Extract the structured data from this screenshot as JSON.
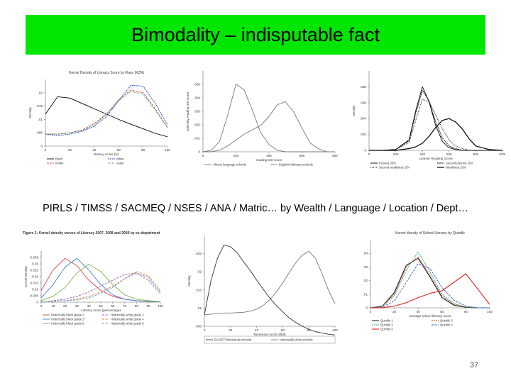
{
  "slide": {
    "title": "Bimodality – indisputable fact",
    "caption": "PIRLS / TIMSS / SACMEQ / NSES / ANA / Matric… by Wealth / Language / Location / Dept…",
    "page_number": "37",
    "title_bg": "#00e600"
  },
  "chart_data": [
    {
      "type": "line",
      "title": "Kernel Density of Literacy Score by Race (KZN)",
      "xlabel": "literacy score (%)",
      "ylabel": "Density",
      "xlim": [
        0,
        100
      ],
      "x_ticks": [
        "0",
        "20",
        "40",
        "60",
        "80",
        "100"
      ],
      "y_ticks": [
        "0",
        ".005",
        ".01",
        ".015",
        ".02"
      ],
      "x": [
        0,
        10,
        20,
        30,
        40,
        50,
        60,
        70,
        80,
        90,
        100
      ],
      "series": [
        {
          "name": "Black",
          "color": "#000000",
          "dash": "",
          "values": [
            0.012,
            0.0185,
            0.018,
            0.016,
            0.014,
            0.012,
            0.01,
            0.0082,
            0.0065,
            0.0048,
            0.0035
          ]
        },
        {
          "name": "White",
          "color": "#1f3fbf",
          "dash": "2,1",
          "values": [
            0.0045,
            0.004,
            0.0045,
            0.0055,
            0.0075,
            0.011,
            0.017,
            0.0228,
            0.0225,
            0.016,
            0.008
          ]
        },
        {
          "name": "Indian",
          "color": "#c44545",
          "dash": "3,1.5",
          "values": [
            0.0045,
            0.0045,
            0.005,
            0.006,
            0.0085,
            0.012,
            0.0175,
            0.021,
            0.02,
            0.014,
            0.007
          ]
        },
        {
          "name": "Asian",
          "color": "#2e8b57",
          "dash": "1,1",
          "values": [
            0.0045,
            0.0045,
            0.005,
            0.0058,
            0.008,
            0.0118,
            0.017,
            0.0205,
            0.0195,
            0.0135,
            0.0068
          ]
        }
      ]
    },
    {
      "type": "line",
      "xlabel": "reading test score",
      "ylabel": "kdensity reading test score",
      "xlim": [
        0,
        800
      ],
      "x_ticks": [
        "0",
        "200",
        "400",
        "600",
        "800"
      ],
      "y_ticks": [
        "0",
        ".001",
        ".002",
        ".003",
        ".004",
        ".005"
      ],
      "x": [
        0,
        50,
        100,
        150,
        200,
        250,
        300,
        350,
        400,
        450,
        500,
        550,
        600,
        650,
        700,
        750,
        800
      ],
      "series": [
        {
          "name": "African language schools",
          "color": "#777777",
          "dash": "",
          "values": [
            0.0,
            0.0001,
            0.0007,
            0.0025,
            0.0046,
            0.0042,
            0.0028,
            0.0013,
            0.0005,
            0.0001,
            0.0,
            0.0,
            0.0,
            0.0,
            0.0,
            0.0,
            0.0
          ]
        },
        {
          "name": "English/Afrikaans schools",
          "color": "#777777",
          "dash": "",
          "values": [
            0.0,
            0.0,
            0.0001,
            0.0004,
            0.0008,
            0.0012,
            0.0015,
            0.0018,
            0.0024,
            0.0032,
            0.0034,
            0.0027,
            0.0016,
            0.0006,
            0.0002,
            0.0,
            0.0
          ]
        }
      ]
    },
    {
      "type": "line",
      "xlabel": "Learner Reading Score",
      "ylabel": "Density",
      "xlim": [
        0,
        1000
      ],
      "x_ticks": [
        "0",
        "200",
        "400",
        "600",
        "800",
        "1000"
      ],
      "y_ticks": [
        "0",
        ".002",
        ".004",
        ".006",
        ".008"
      ],
      "x": [
        0,
        100,
        200,
        300,
        350,
        400,
        450,
        500,
        550,
        600,
        650,
        700,
        750,
        800,
        900,
        1000
      ],
      "series": [
        {
          "name": "Poorest 25%",
          "color": "#000000",
          "dash": "",
          "values": [
            0.0,
            0.0,
            0.0001,
            0.0012,
            0.0045,
            0.0072,
            0.0055,
            0.0028,
            0.001,
            0.0003,
            0.0001,
            0.0,
            0.0,
            0.0,
            0.0,
            0.0
          ]
        },
        {
          "name": "Second poorest 25%",
          "color": "#000000",
          "dash": "2,1",
          "values": [
            0.0,
            0.0,
            0.0001,
            0.0011,
            0.0042,
            0.0068,
            0.0056,
            0.0032,
            0.0014,
            0.0005,
            0.0002,
            0.0,
            0.0,
            0.0,
            0.0,
            0.0
          ]
        },
        {
          "name": "Second wealthiest 25%",
          "color": "#000000",
          "dash": "1,1",
          "values": [
            0.0,
            0.0,
            0.0001,
            0.0009,
            0.0034,
            0.0058,
            0.0055,
            0.004,
            0.0024,
            0.0012,
            0.0005,
            0.0002,
            0.0,
            0.0,
            0.0,
            0.0
          ]
        },
        {
          "name": "Wealthiest 25%",
          "color": "#000000",
          "dash": "",
          "width": 1.2,
          "values": [
            0.0,
            0.0,
            0.0,
            0.0002,
            0.0004,
            0.0008,
            0.0016,
            0.0026,
            0.0034,
            0.0036,
            0.0032,
            0.0024,
            0.0013,
            0.0005,
            0.0001,
            0.0
          ]
        }
      ]
    },
    {
      "type": "line",
      "title": "Figure 2: Kernel density curves of Literacy 2007, 2008 and 2009 by ex-department",
      "xlabel": "Literacy score (percentage)",
      "ylabel": "Kernel Density",
      "xlim": [
        0,
        100
      ],
      "x_ticks": [
        "0",
        "10",
        "20",
        "30",
        "40",
        "50",
        "60",
        "70",
        "80",
        "90",
        "100"
      ],
      "y_ticks": [
        "0",
        "0.005",
        "0.01",
        "0.015",
        "0.02",
        "0.025",
        "0.03",
        "0.035"
      ],
      "x": [
        0,
        10,
        20,
        30,
        40,
        50,
        60,
        70,
        80,
        90,
        100
      ],
      "series": [
        {
          "name": "Historically black grade 2",
          "color": "#e04040",
          "dash": "",
          "values": [
            0.008,
            0.022,
            0.03,
            0.025,
            0.015,
            0.008,
            0.004,
            0.002,
            0.001,
            0.0005,
            0.0002
          ]
        },
        {
          "name": "Historically white grade 3",
          "color": "#9b59b6",
          "dash": "3,1.5",
          "values": [
            0.0,
            0.001,
            0.002,
            0.004,
            0.007,
            0.011,
            0.015,
            0.019,
            0.02,
            0.015,
            0.006
          ]
        },
        {
          "name": "Historically black grade 3",
          "color": "#3a7bd5",
          "dash": "",
          "values": [
            0.003,
            0.012,
            0.024,
            0.03,
            0.022,
            0.012,
            0.005,
            0.002,
            0.001,
            0.0005,
            0.0002
          ]
        },
        {
          "name": "Historically white grade 4",
          "color": "#e67e22",
          "dash": "3,1.5",
          "values": [
            0.0,
            0.0005,
            0.001,
            0.002,
            0.004,
            0.007,
            0.011,
            0.016,
            0.021,
            0.018,
            0.008
          ]
        },
        {
          "name": "Historically black grade 5",
          "color": "#7cb342",
          "dash": "",
          "values": [
            0.001,
            0.004,
            0.01,
            0.02,
            0.026,
            0.021,
            0.012,
            0.005,
            0.002,
            0.001,
            0.0003
          ]
        },
        {
          "name": "Historically white grade 5",
          "color": "#5b9bd5",
          "dash": "3,1.5",
          "values": [
            0.0,
            0.0005,
            0.001,
            0.0015,
            0.003,
            0.006,
            0.01,
            0.016,
            0.02,
            0.017,
            0.007
          ]
        }
      ]
    },
    {
      "type": "line",
      "xlabel": "Numeracy score 2008",
      "ylabel": "Density",
      "xlim": [
        0,
        100
      ],
      "x_ticks": [
        "0",
        "20",
        "40",
        "60",
        "80",
        "100"
      ],
      "y_ticks": [
        ".005",
        ".01",
        ".015",
        ".02",
        ".025"
      ],
      "x": [
        0,
        5,
        10,
        15,
        20,
        25,
        30,
        35,
        40,
        45,
        50,
        55,
        60,
        65,
        70,
        75,
        80,
        85,
        90,
        95,
        100
      ],
      "series": [
        {
          "name": "Ex-DET/Homelands schools",
          "color": "#333333",
          "dash": "",
          "values": [
            0.006,
            0.015,
            0.021,
            0.0245,
            0.024,
            0.0225,
            0.02,
            0.0178,
            0.0152,
            0.0128,
            0.0105,
            0.0085,
            0.0068,
            0.0052,
            0.004,
            0.003,
            0.0022,
            0.0016,
            0.0012,
            0.0009,
            0.0007
          ]
        },
        {
          "name": "Historically white schools",
          "color": "#777777",
          "dash": "",
          "values": [
            0.006,
            0.0062,
            0.0064,
            0.0065,
            0.0065,
            0.0066,
            0.0067,
            0.007,
            0.0075,
            0.0085,
            0.01,
            0.012,
            0.0145,
            0.0172,
            0.0198,
            0.0218,
            0.0228,
            0.021,
            0.017,
            0.0125,
            0.009
          ]
        }
      ]
    },
    {
      "type": "line",
      "title": "Kernel density of School Literacy by Quintile",
      "xlabel": "Average school literacy score",
      "ylabel": "Density",
      "xlim": [
        0,
        100
      ],
      "x_ticks": [
        "0",
        "20",
        "40",
        "60",
        "80",
        "100"
      ],
      "y_ticks": [
        "0",
        ".01",
        ".02",
        ".03",
        ".04"
      ],
      "x": [
        0,
        10,
        20,
        30,
        40,
        50,
        60,
        70,
        80,
        90,
        100
      ],
      "series": [
        {
          "name": "Quintile 1",
          "color": "#000000",
          "dash": "",
          "values": [
            0.0,
            0.001,
            0.009,
            0.025,
            0.029,
            0.018,
            0.006,
            0.0015,
            0.0003,
            0.0,
            0.0
          ]
        },
        {
          "name": "Quintile 2",
          "color": "#c0392b",
          "dash": "2,1",
          "values": [
            0.0,
            0.001,
            0.008,
            0.024,
            0.03,
            0.019,
            0.007,
            0.002,
            0.0004,
            0.0,
            0.0
          ]
        },
        {
          "name": "Quintile 3",
          "color": "#27ae60",
          "dash": "2,1",
          "values": [
            0.0,
            0.0008,
            0.007,
            0.022,
            0.033,
            0.021,
            0.008,
            0.0025,
            0.0005,
            0.0,
            0.0
          ]
        },
        {
          "name": "Quintile 4",
          "color": "#2e4fd1",
          "dash": "3,1.5",
          "values": [
            0.0,
            0.0005,
            0.004,
            0.015,
            0.026,
            0.023,
            0.012,
            0.0045,
            0.001,
            0.0,
            0.0
          ]
        },
        {
          "name": "Quintile 5",
          "color": "#e02020",
          "dash": "",
          "width": 1.1,
          "values": [
            0.0,
            0.0001,
            0.001,
            0.003,
            0.006,
            0.0085,
            0.01,
            0.015,
            0.02,
            0.011,
            0.002
          ]
        }
      ]
    }
  ]
}
